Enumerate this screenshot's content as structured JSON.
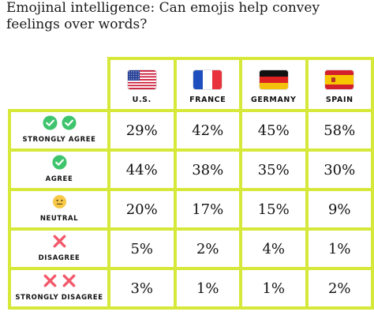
{
  "title": "Emojinal intelligence: Can emojis help convey feelings over words?",
  "colors": {
    "border": "#d6e83a",
    "check_green": "#3ec46d",
    "cross_red": "#f25a6a",
    "neutral_yellow": "#f7c948"
  },
  "chart_data": {
    "type": "table",
    "title": "Emojinal intelligence: Can emojis help convey feelings over words?",
    "columns": [
      {
        "label": "U.S.",
        "flag": "us-flag-icon"
      },
      {
        "label": "FRANCE",
        "flag": "france-flag-icon"
      },
      {
        "label": "GERMANY",
        "flag": "germany-flag-icon"
      },
      {
        "label": "SPAIN",
        "flag": "spain-flag-icon"
      }
    ],
    "rows": [
      {
        "label": "STRONGLY AGREE",
        "icons": [
          "check-icon",
          "check-icon"
        ],
        "values": [
          "29%",
          "42%",
          "45%",
          "58%"
        ]
      },
      {
        "label": "AGREE",
        "icons": [
          "check-icon"
        ],
        "values": [
          "44%",
          "38%",
          "35%",
          "30%"
        ]
      },
      {
        "label": "NEUTRAL",
        "icons": [
          "neutral-face-icon"
        ],
        "values": [
          "20%",
          "17%",
          "15%",
          "9%"
        ]
      },
      {
        "label": "DISAGREE",
        "icons": [
          "cross-icon"
        ],
        "values": [
          "5%",
          "2%",
          "4%",
          "1%"
        ]
      },
      {
        "label": "STRONGLY DISAGREE",
        "icons": [
          "cross-icon",
          "cross-icon"
        ],
        "values": [
          "3%",
          "1%",
          "1%",
          "2%"
        ]
      }
    ]
  }
}
